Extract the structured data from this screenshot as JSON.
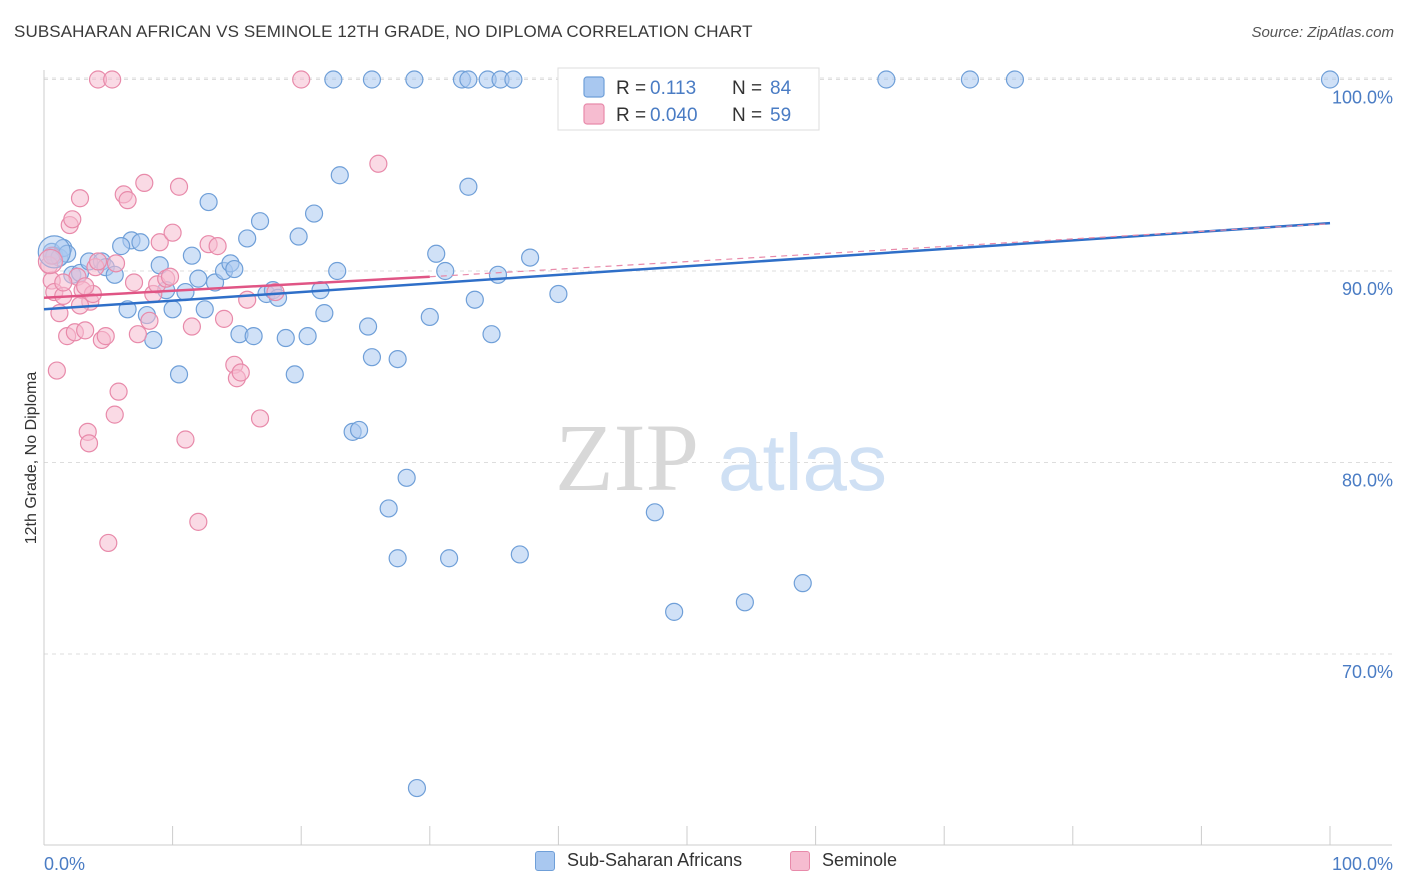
{
  "title": "SUBSAHARAN AFRICAN VS SEMINOLE 12TH GRADE, NO DIPLOMA CORRELATION CHART",
  "source": "Source: ZipAtlas.com",
  "watermark": {
    "zip": "ZIP",
    "atlas": "atlas"
  },
  "colors": {
    "blue_fill": "#a9c8f0",
    "blue_stroke": "#6f9fd8",
    "blue_line": "#2f6fc8",
    "pink_fill": "#f6bcd0",
    "pink_stroke": "#e88aaa",
    "pink_line": "#e05585",
    "tick_text": "#4a7cc4",
    "grid": "#dddddd"
  },
  "chart_data": {
    "type": "scatter",
    "title": "SUBSAHARAN AFRICAN VS SEMINOLE 12TH GRADE, NO DIPLOMA CORRELATION CHART",
    "xlabel": "",
    "ylabel": "12th Grade, No Diploma",
    "xlim": [
      0,
      100
    ],
    "ylim": [
      62,
      102
    ],
    "x_tick_labels": [
      "0.0%",
      "100.0%"
    ],
    "y_ticks": [
      70,
      80,
      90,
      100
    ],
    "y_tick_labels": [
      "70.0%",
      "80.0%",
      "90.0%",
      "100.0%"
    ],
    "grid": true,
    "legend_top": [
      {
        "r_label": "R =",
        "r_value": "0.113",
        "n_label": "N =",
        "n_value": "84"
      },
      {
        "r_label": "R =",
        "r_value": "0.040",
        "n_label": "N =",
        "n_value": "59"
      }
    ],
    "series": [
      {
        "name": "Sub-Saharan Africans",
        "trend": {
          "x": [
            0,
            100
          ],
          "y": [
            88.0,
            92.5
          ]
        },
        "points": [
          [
            0.6,
            91.0
          ],
          [
            0.8,
            90.8
          ],
          [
            1.2,
            90.7
          ],
          [
            1.5,
            91.2
          ],
          [
            1.8,
            90.9
          ],
          [
            2.2,
            89.8
          ],
          [
            2.8,
            89.9
          ],
          [
            3.5,
            90.5
          ],
          [
            4.5,
            90.5
          ],
          [
            4.8,
            90.2
          ],
          [
            5.5,
            89.8
          ],
          [
            6.5,
            88.0
          ],
          [
            6.8,
            91.6
          ],
          [
            7.5,
            91.5
          ],
          [
            8.0,
            87.7
          ],
          [
            8.5,
            86.4
          ],
          [
            9.0,
            90.3
          ],
          [
            9.5,
            89.0
          ],
          [
            10.0,
            88.0
          ],
          [
            10.5,
            84.6
          ],
          [
            11.0,
            88.9
          ],
          [
            11.5,
            90.8
          ],
          [
            12.0,
            89.6
          ],
          [
            12.5,
            88.0
          ],
          [
            12.8,
            93.6
          ],
          [
            13.3,
            89.4
          ],
          [
            14.0,
            90.0
          ],
          [
            14.5,
            90.4
          ],
          [
            14.8,
            90.1
          ],
          [
            15.2,
            86.7
          ],
          [
            15.8,
            91.7
          ],
          [
            16.3,
            86.6
          ],
          [
            16.8,
            92.6
          ],
          [
            17.3,
            88.8
          ],
          [
            17.8,
            89.0
          ],
          [
            18.2,
            88.6
          ],
          [
            18.8,
            86.5
          ],
          [
            19.5,
            84.6
          ],
          [
            19.8,
            91.8
          ],
          [
            20.5,
            86.6
          ],
          [
            21.0,
            93.0
          ],
          [
            21.5,
            89.0
          ],
          [
            21.8,
            87.8
          ],
          [
            22.8,
            90.0
          ],
          [
            23.0,
            95.0
          ],
          [
            24.0,
            81.6
          ],
          [
            24.5,
            81.7
          ],
          [
            25.2,
            87.1
          ],
          [
            25.5,
            85.5
          ],
          [
            26.8,
            77.6
          ],
          [
            27.5,
            85.4
          ],
          [
            28.2,
            79.2
          ],
          [
            29.0,
            63.0
          ],
          [
            30.0,
            87.6
          ],
          [
            30.5,
            90.9
          ],
          [
            31.2,
            90.0
          ],
          [
            31.5,
            75.0
          ],
          [
            33.0,
            94.4
          ],
          [
            33.5,
            88.5
          ],
          [
            34.8,
            86.7
          ],
          [
            35.3,
            89.8
          ],
          [
            37.0,
            75.2
          ],
          [
            37.8,
            90.7
          ],
          [
            40.0,
            88.8
          ],
          [
            47.5,
            77.4
          ],
          [
            49.0,
            72.2
          ],
          [
            54.5,
            72.7
          ],
          [
            59.0,
            73.7
          ],
          [
            22.5,
            100.0
          ],
          [
            28.8,
            100.0
          ],
          [
            32.5,
            100.0
          ],
          [
            33.0,
            100.0
          ],
          [
            34.5,
            100.0
          ],
          [
            35.5,
            100.0
          ],
          [
            45.5,
            100.0
          ],
          [
            54.5,
            100.0
          ],
          [
            65.5,
            100.0
          ],
          [
            72.0,
            100.0
          ],
          [
            75.5,
            100.0
          ],
          [
            100.0,
            100.0
          ],
          [
            36.5,
            100.0
          ],
          [
            25.5,
            100.0
          ],
          [
            6.0,
            91.3
          ],
          [
            27.5,
            75.0
          ]
        ]
      },
      {
        "name": "Seminole",
        "trend": {
          "x": [
            0,
            30
          ],
          "y": [
            88.6,
            89.7
          ]
        },
        "points": [
          [
            0.4,
            90.3
          ],
          [
            0.6,
            89.5
          ],
          [
            0.8,
            88.9
          ],
          [
            1.0,
            84.8
          ],
          [
            1.2,
            87.8
          ],
          [
            1.5,
            88.7
          ],
          [
            1.8,
            86.6
          ],
          [
            2.0,
            92.4
          ],
          [
            2.2,
            92.7
          ],
          [
            2.4,
            86.8
          ],
          [
            2.6,
            89.7
          ],
          [
            2.8,
            93.8
          ],
          [
            3.0,
            89.0
          ],
          [
            3.2,
            86.9
          ],
          [
            3.4,
            81.6
          ],
          [
            3.5,
            81.0
          ],
          [
            3.6,
            88.4
          ],
          [
            3.8,
            88.8
          ],
          [
            4.0,
            90.2
          ],
          [
            4.2,
            90.5
          ],
          [
            4.5,
            86.4
          ],
          [
            4.8,
            86.6
          ],
          [
            5.0,
            75.8
          ],
          [
            5.5,
            82.5
          ],
          [
            5.8,
            83.7
          ],
          [
            6.2,
            94.0
          ],
          [
            6.5,
            93.7
          ],
          [
            7.0,
            89.4
          ],
          [
            7.3,
            86.7
          ],
          [
            7.8,
            94.6
          ],
          [
            8.2,
            87.4
          ],
          [
            8.5,
            88.8
          ],
          [
            8.8,
            89.3
          ],
          [
            9.0,
            91.5
          ],
          [
            9.5,
            89.6
          ],
          [
            9.8,
            89.7
          ],
          [
            10.0,
            92.0
          ],
          [
            10.5,
            94.4
          ],
          [
            11.0,
            81.2
          ],
          [
            11.5,
            87.1
          ],
          [
            12.0,
            76.9
          ],
          [
            12.8,
            91.4
          ],
          [
            13.5,
            91.3
          ],
          [
            14.0,
            87.5
          ],
          [
            14.8,
            85.1
          ],
          [
            15.0,
            84.4
          ],
          [
            15.3,
            84.7
          ],
          [
            15.8,
            88.5
          ],
          [
            16.8,
            82.3
          ],
          [
            18.0,
            88.9
          ],
          [
            26.0,
            95.6
          ],
          [
            4.2,
            100.0
          ],
          [
            5.3,
            100.0
          ],
          [
            20.0,
            100.0
          ],
          [
            0.6,
            90.8
          ],
          [
            1.5,
            89.4
          ],
          [
            2.8,
            88.2
          ],
          [
            5.6,
            90.4
          ],
          [
            3.2,
            89.2
          ]
        ]
      }
    ]
  }
}
